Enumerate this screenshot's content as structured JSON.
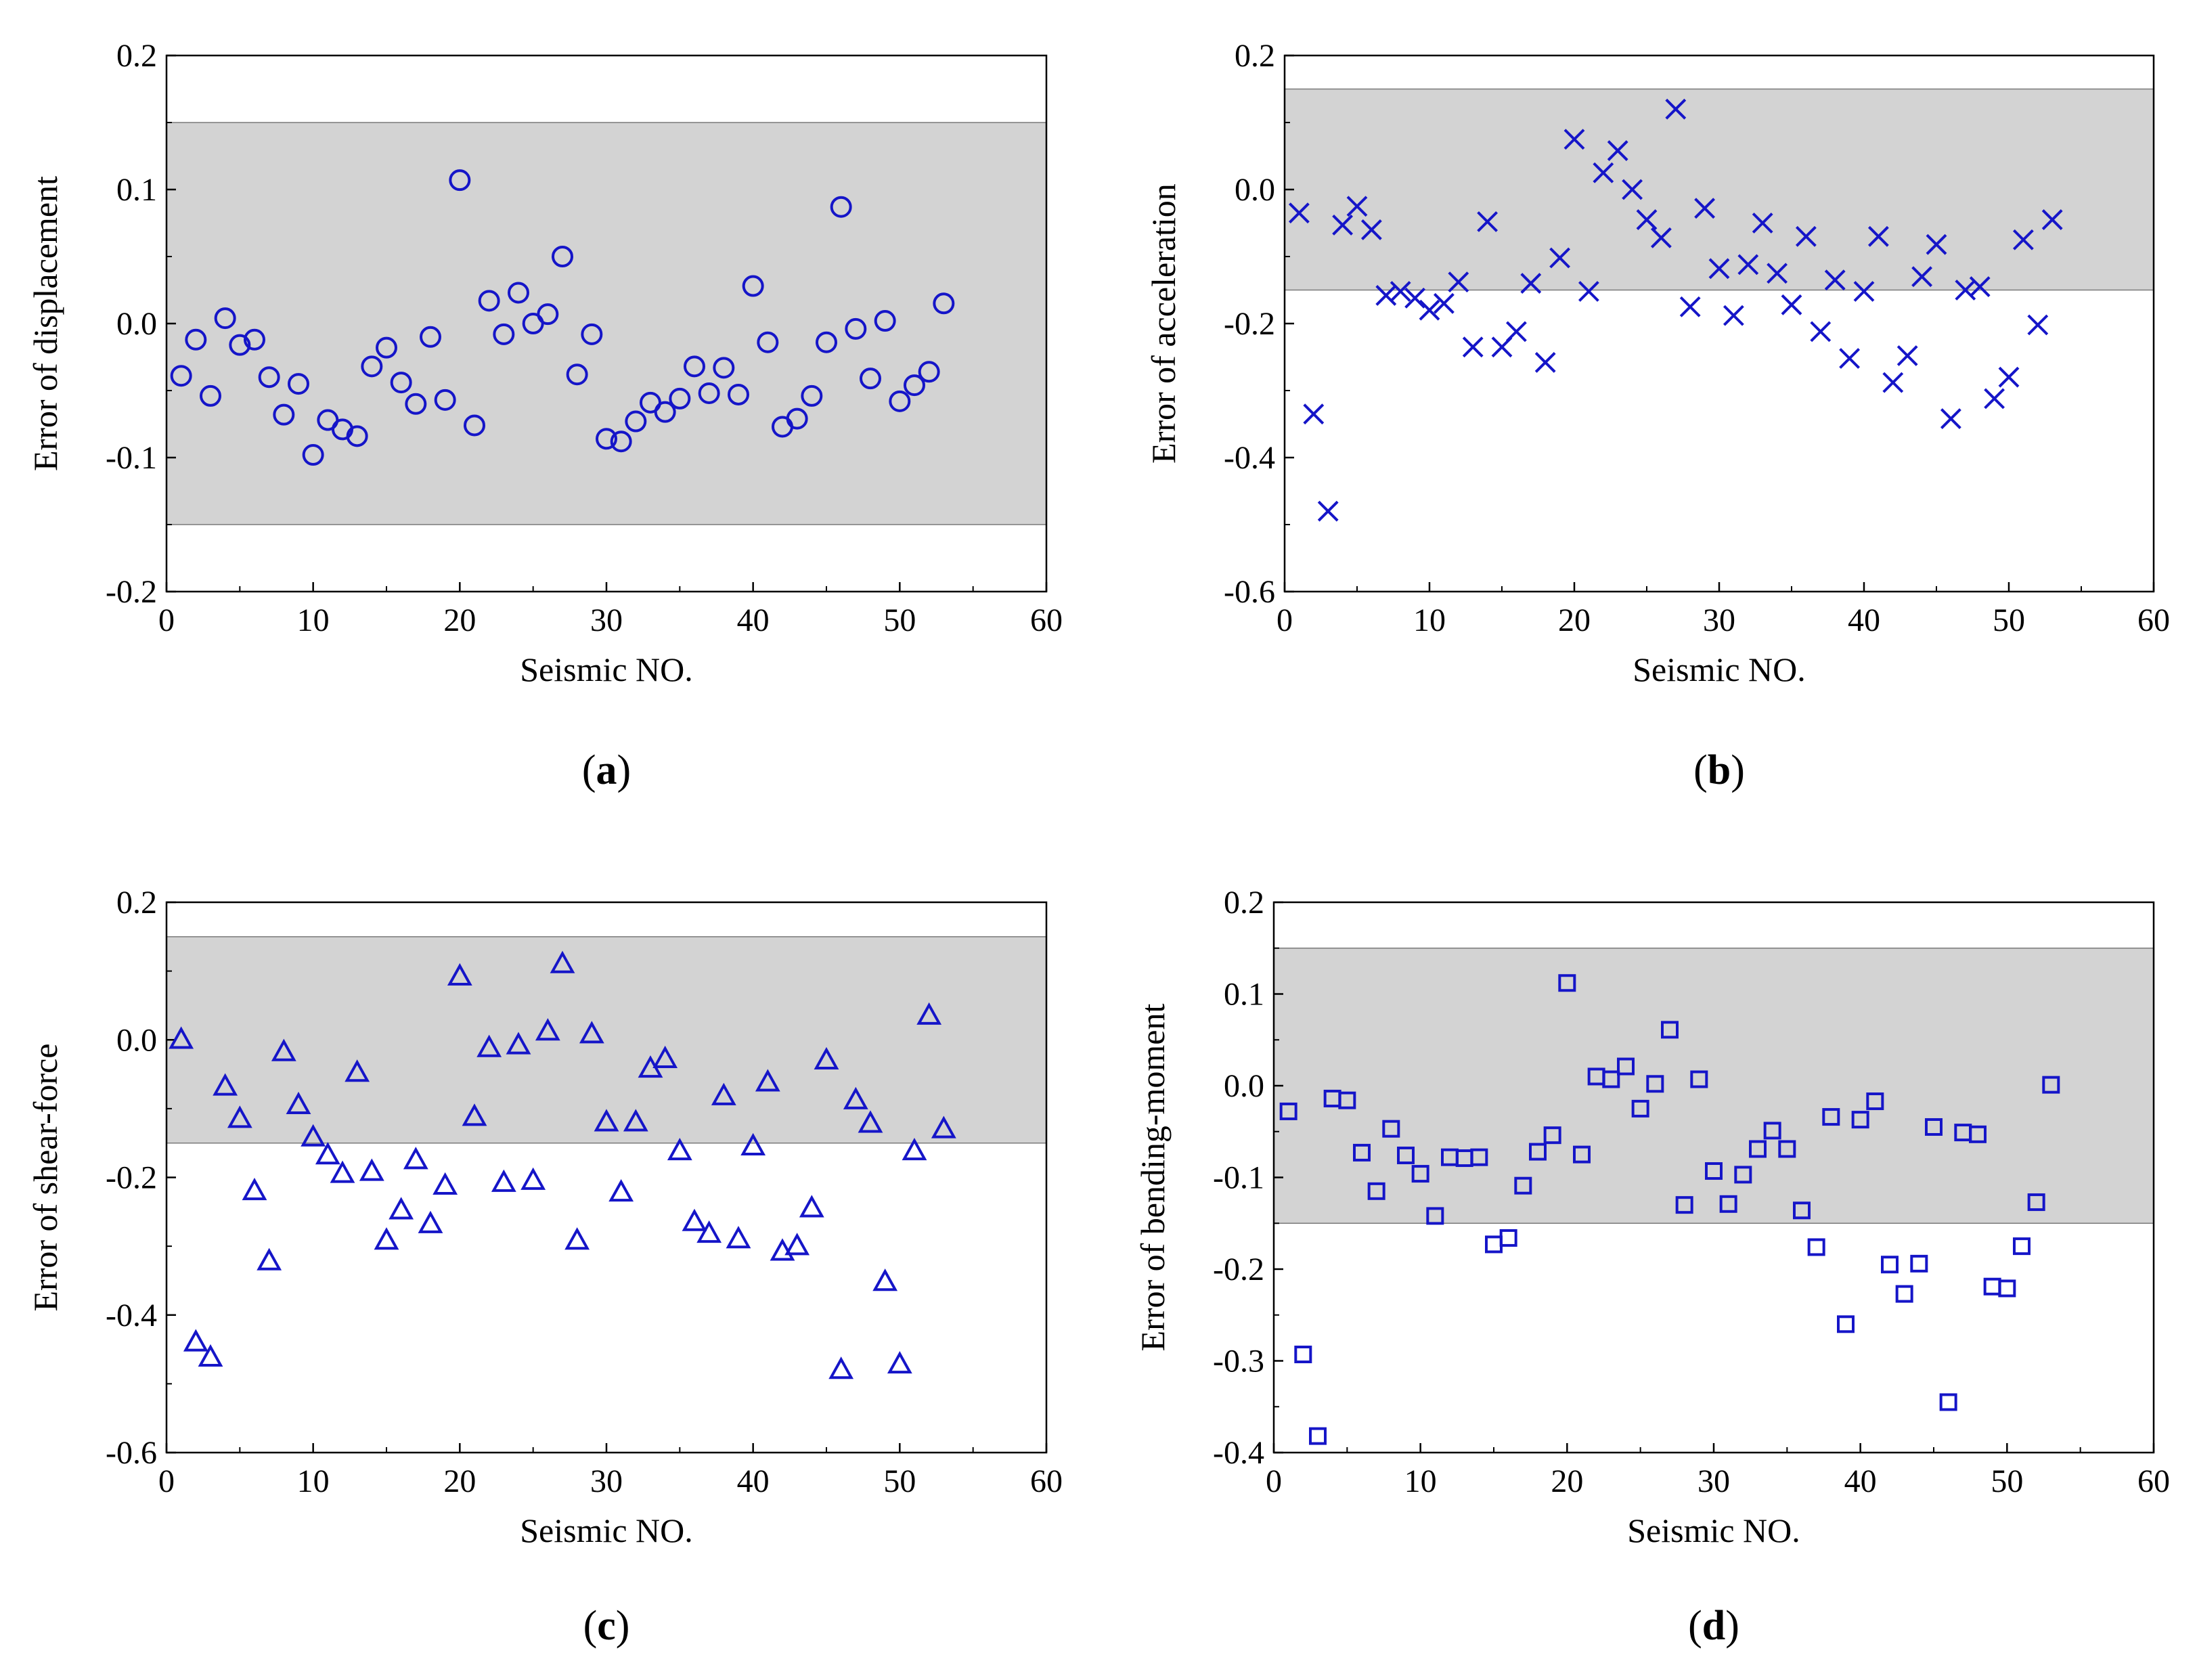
{
  "colors": {
    "marker": "#1515c8",
    "band": "#d3d3d3",
    "axis": "#000000"
  },
  "chart_data": [
    {
      "type": "scatter",
      "panel": "a",
      "title": "",
      "xlabel": "Seismic NO.",
      "ylabel": "Error of displacement",
      "xlim": [
        0,
        60
      ],
      "ylim": [
        -0.2,
        0.2
      ],
      "xticks": [
        0,
        10,
        20,
        30,
        40,
        50,
        60
      ],
      "yticks": [
        -0.2,
        -0.1,
        0.0,
        0.1,
        0.2
      ],
      "xtick_labels": [
        "0",
        "10",
        "20",
        "30",
        "40",
        "50",
        "60"
      ],
      "ytick_labels": [
        "-0.2",
        "-0.1",
        "0.0",
        "0.1",
        "0.2"
      ],
      "band": [
        -0.15,
        0.15
      ],
      "marker": "circle",
      "x": [
        1,
        2,
        3,
        4,
        5,
        6,
        7,
        8,
        9,
        10,
        11,
        12,
        13,
        14,
        15,
        16,
        17,
        18,
        19,
        20,
        21,
        22,
        23,
        24,
        25,
        26,
        27,
        28,
        29,
        30,
        31,
        32,
        33,
        34,
        35,
        36,
        37,
        38,
        39,
        40,
        41,
        42,
        43,
        44,
        45,
        46,
        47,
        48,
        49,
        50,
        51,
        52,
        53
      ],
      "y": [
        -0.039,
        -0.012,
        -0.054,
        0.004,
        -0.016,
        -0.012,
        -0.04,
        -0.068,
        -0.045,
        -0.098,
        -0.072,
        -0.079,
        -0.084,
        -0.032,
        -0.018,
        -0.044,
        -0.06,
        -0.01,
        -0.057,
        0.107,
        -0.076,
        0.017,
        -0.008,
        0.023,
        0.0,
        0.007,
        0.05,
        -0.038,
        -0.008,
        -0.086,
        -0.088,
        -0.073,
        -0.059,
        -0.066,
        -0.056,
        -0.032,
        -0.052,
        -0.033,
        -0.053,
        0.028,
        -0.014,
        -0.077,
        -0.071,
        -0.054,
        -0.014,
        0.087,
        -0.004,
        -0.041,
        0.002,
        -0.058,
        -0.046,
        -0.036,
        0.015
      ],
      "panel_label_open": "(",
      "panel_label_letter": "a",
      "panel_label_close": ")"
    },
    {
      "type": "scatter",
      "panel": "b",
      "title": "",
      "xlabel": "Seismic NO.",
      "ylabel": "Error of acceleration",
      "xlim": [
        0,
        60
      ],
      "ylim": [
        -0.6,
        0.2
      ],
      "xticks": [
        0,
        10,
        20,
        30,
        40,
        50,
        60
      ],
      "yticks": [
        -0.6,
        -0.4,
        -0.2,
        0.0,
        0.2
      ],
      "xtick_labels": [
        "0",
        "10",
        "20",
        "30",
        "40",
        "50",
        "60"
      ],
      "ytick_labels": [
        "-0.6",
        "-0.4",
        "-0.2",
        "0.0",
        "0.2"
      ],
      "band": [
        -0.15,
        0.15
      ],
      "marker": "x",
      "x": [
        1,
        2,
        3,
        4,
        5,
        6,
        7,
        8,
        9,
        10,
        11,
        12,
        13,
        14,
        15,
        16,
        17,
        18,
        19,
        20,
        21,
        22,
        23,
        24,
        25,
        26,
        27,
        28,
        29,
        30,
        31,
        32,
        33,
        34,
        35,
        36,
        37,
        38,
        39,
        40,
        41,
        42,
        43,
        44,
        45,
        46,
        47,
        48,
        49,
        50,
        51,
        52,
        53
      ],
      "y": [
        -0.035,
        -0.335,
        -0.48,
        -0.053,
        -0.025,
        -0.06,
        -0.158,
        -0.152,
        -0.162,
        -0.18,
        -0.17,
        -0.138,
        -0.235,
        -0.048,
        -0.235,
        -0.212,
        -0.14,
        -0.258,
        -0.102,
        0.075,
        -0.152,
        0.025,
        0.058,
        0.0,
        -0.045,
        -0.072,
        0.12,
        -0.175,
        -0.028,
        -0.118,
        -0.188,
        -0.112,
        -0.05,
        -0.125,
        -0.172,
        -0.07,
        -0.212,
        -0.135,
        -0.252,
        -0.152,
        -0.07,
        -0.288,
        -0.248,
        -0.13,
        -0.082,
        -0.342,
        -0.15,
        -0.145,
        -0.312,
        -0.28,
        -0.075,
        -0.202,
        -0.045
      ],
      "panel_label_open": "(",
      "panel_label_letter": "b",
      "panel_label_close": ")"
    },
    {
      "type": "scatter",
      "panel": "c",
      "title": "",
      "xlabel": "Seismic NO.",
      "ylabel": "Error of shear-force",
      "xlim": [
        0,
        60
      ],
      "ylim": [
        -0.6,
        0.2
      ],
      "xticks": [
        0,
        10,
        20,
        30,
        40,
        50,
        60
      ],
      "yticks": [
        -0.6,
        -0.4,
        -0.2,
        0.0,
        0.2
      ],
      "xtick_labels": [
        "0",
        "10",
        "20",
        "30",
        "40",
        "50",
        "60"
      ],
      "ytick_labels": [
        "-0.6",
        "-0.4",
        "-0.2",
        "0.0",
        "0.2"
      ],
      "band": [
        -0.15,
        0.15
      ],
      "marker": "triangle",
      "x": [
        1,
        2,
        3,
        4,
        5,
        6,
        7,
        8,
        9,
        10,
        11,
        12,
        13,
        14,
        15,
        16,
        17,
        18,
        19,
        20,
        21,
        22,
        23,
        24,
        25,
        26,
        27,
        28,
        29,
        30,
        31,
        32,
        33,
        34,
        35,
        36,
        37,
        38,
        39,
        40,
        41,
        42,
        43,
        44,
        45,
        46,
        47,
        48,
        49,
        50,
        51,
        52,
        53
      ],
      "y": [
        0.0,
        -0.44,
        -0.462,
        -0.068,
        -0.115,
        -0.22,
        -0.322,
        -0.018,
        -0.095,
        -0.142,
        -0.168,
        -0.195,
        -0.048,
        -0.192,
        -0.292,
        -0.248,
        -0.175,
        -0.268,
        -0.212,
        0.092,
        -0.112,
        -0.012,
        -0.208,
        -0.008,
        -0.205,
        0.012,
        0.11,
        -0.292,
        0.008,
        -0.12,
        -0.222,
        -0.12,
        -0.042,
        -0.028,
        -0.162,
        -0.265,
        -0.282,
        -0.082,
        -0.29,
        -0.155,
        -0.062,
        -0.308,
        -0.3,
        -0.245,
        -0.03,
        -0.48,
        -0.088,
        -0.122,
        -0.352,
        -0.472,
        -0.162,
        0.035,
        -0.13
      ],
      "panel_label_open": "(",
      "panel_label_letter": "c",
      "panel_label_close": ")"
    },
    {
      "type": "scatter",
      "panel": "d",
      "title": "",
      "xlabel": "Seismic NO.",
      "ylabel": "Error of bending-moment",
      "xlim": [
        0,
        60
      ],
      "ylim": [
        -0.4,
        0.2
      ],
      "xticks": [
        0,
        10,
        20,
        30,
        40,
        50,
        60
      ],
      "yticks": [
        -0.4,
        -0.3,
        -0.2,
        -0.1,
        0.0,
        0.1,
        0.2
      ],
      "xtick_labels": [
        "0",
        "10",
        "20",
        "30",
        "40",
        "50",
        "60"
      ],
      "ytick_labels": [
        "-0.4",
        "-0.3",
        "-0.2",
        "-0.1",
        "0.0",
        "0.1",
        "0.2"
      ],
      "band": [
        -0.15,
        0.15
      ],
      "marker": "square",
      "x": [
        1,
        2,
        3,
        4,
        5,
        6,
        7,
        8,
        9,
        10,
        11,
        12,
        13,
        14,
        15,
        16,
        17,
        18,
        19,
        20,
        21,
        22,
        23,
        24,
        25,
        26,
        27,
        28,
        29,
        30,
        31,
        32,
        33,
        34,
        35,
        36,
        37,
        38,
        39,
        40,
        41,
        42,
        43,
        44,
        45,
        46,
        47,
        48,
        49,
        50,
        51,
        52,
        53
      ],
      "y": [
        -0.028,
        -0.293,
        -0.382,
        -0.014,
        -0.016,
        -0.073,
        -0.115,
        -0.047,
        -0.076,
        -0.096,
        -0.142,
        -0.078,
        -0.079,
        -0.078,
        -0.173,
        -0.166,
        -0.109,
        -0.072,
        -0.054,
        0.112,
        -0.075,
        0.01,
        0.007,
        0.021,
        -0.025,
        0.002,
        0.061,
        -0.13,
        0.007,
        -0.093,
        -0.129,
        -0.097,
        -0.069,
        -0.049,
        -0.069,
        -0.136,
        -0.176,
        -0.034,
        -0.26,
        -0.037,
        -0.017,
        -0.195,
        -0.227,
        -0.194,
        -0.045,
        -0.345,
        -0.051,
        -0.053,
        -0.219,
        -0.221,
        -0.175,
        -0.127,
        0.001
      ],
      "panel_label_open": "(",
      "panel_label_letter": "d",
      "panel_label_close": ")"
    }
  ]
}
